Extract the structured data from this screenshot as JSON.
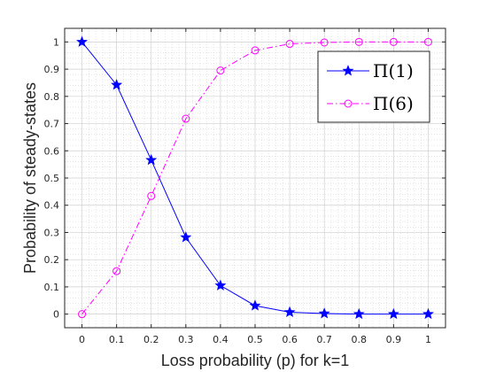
{
  "chart_data": {
    "type": "line",
    "xlabel": "Loss probability (p) for k=1",
    "ylabel": "Probability of steady-states",
    "x": [
      0,
      0.1,
      0.2,
      0.3,
      0.4,
      0.5,
      0.6,
      0.7,
      0.8,
      0.9,
      1
    ],
    "xticks": [
      "0",
      "0.1",
      "0.2",
      "0.3",
      "0.4",
      "0.5",
      "0.6",
      "0.7",
      "0.8",
      "0.9",
      "1"
    ],
    "yticks": [
      "0",
      "0.1",
      "0.2",
      "0.3",
      "0.4",
      "0.5",
      "0.6",
      "0.7",
      "0.8",
      "0.9",
      "1"
    ],
    "xlim": [
      -0.05,
      1.05
    ],
    "ylim": [
      -0.05,
      1.05
    ],
    "grid": true,
    "legend_position": "top-right",
    "series": [
      {
        "name": "Π(1)",
        "color": "#0000ff",
        "line_style": "solid",
        "marker": "star",
        "values": [
          1.0,
          0.842,
          0.566,
          0.282,
          0.105,
          0.031,
          0.007,
          0.002,
          0.0,
          0.0,
          0.0
        ]
      },
      {
        "name": "Π(6)",
        "color": "#ff00ff",
        "line_style": "dash-dot",
        "marker": "circle",
        "values": [
          0.0,
          0.158,
          0.434,
          0.718,
          0.895,
          0.969,
          0.993,
          0.998,
          1.0,
          1.0,
          1.0
        ]
      }
    ]
  }
}
